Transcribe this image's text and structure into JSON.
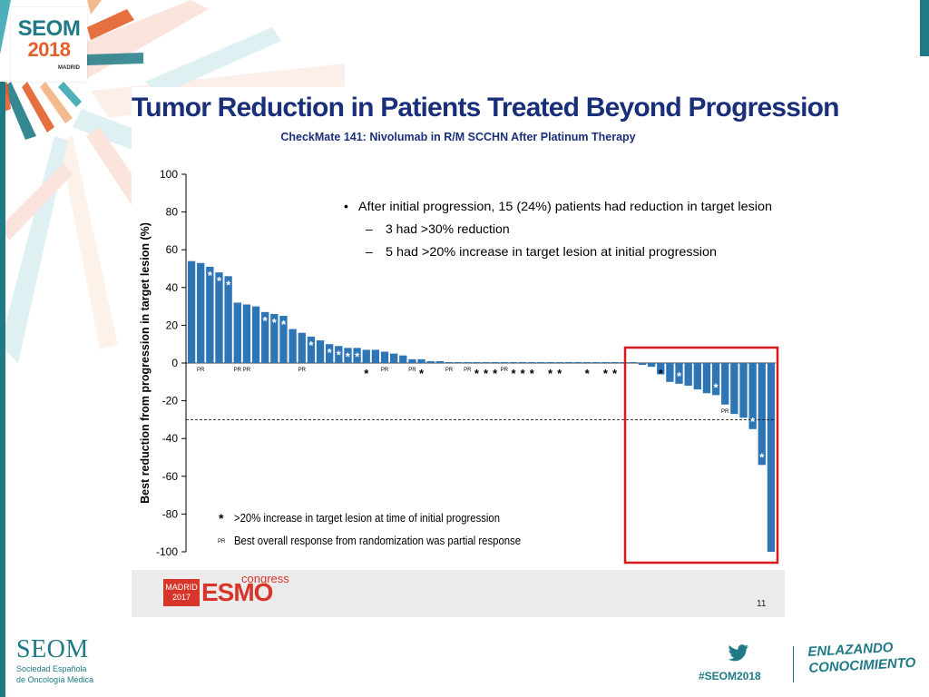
{
  "colors": {
    "accent": "#1f7a86",
    "orange": "#e35f2a",
    "title": "#1a2f7a",
    "bar": "#2e75b6",
    "highlight": "#d8181c"
  },
  "header": {
    "logo_main": "SEOM",
    "logo_year": "2018",
    "logo_city": "MADRID"
  },
  "slide": {
    "title": "Tumor Reduction in Patients Treated Beyond Progression",
    "subtitle": "CheckMate 141: Nivolumab in R/M SCCHN After Platinum Therapy",
    "page_number": "11",
    "esmo_city_line1": "MADRID",
    "esmo_city_line2": "2017",
    "esmo_name": "ESMO",
    "esmo_congress": "congress"
  },
  "footer": {
    "seom_name": "SEOM",
    "seom_sub_line1": "Sociedad Española",
    "seom_sub_line2": "de Oncología Médica",
    "hashtag": "#SEOM2018",
    "tagline_line1": "ENLAZANDO",
    "tagline_line2": "CONOCIMIENTO"
  },
  "chart_data": {
    "type": "bar",
    "title": "Tumor Reduction in Patients Treated Beyond Progression",
    "subtitle": "CheckMate 141: Nivolumab in R/M SCCHN After Platinum Therapy",
    "xlabel": "",
    "ylabel": "Best reduction from progression in target lesion (%)",
    "ylim": [
      -100,
      100
    ],
    "yticks": [
      100,
      80,
      60,
      40,
      20,
      0,
      -20,
      -40,
      -60,
      -80,
      -100
    ],
    "reference_line": -30,
    "values": [
      54,
      53,
      51,
      48,
      46,
      32,
      31,
      30,
      27,
      26,
      25,
      18,
      16,
      14,
      12,
      10,
      9,
      8,
      8,
      7,
      7,
      6,
      5,
      4,
      2,
      2,
      1,
      1,
      0.5,
      0.5,
      0.5,
      0.5,
      0.5,
      0.5,
      0.5,
      0.5,
      0.5,
      0.5,
      0.5,
      0.5,
      0.5,
      0.5,
      0.5,
      0.5,
      0.5,
      0.5,
      0.5,
      0.5,
      0.5,
      -1,
      -2,
      -6,
      -10,
      -11,
      -12,
      -14,
      -16,
      -17,
      -22,
      -27,
      -29,
      -35,
      -54,
      -100
    ],
    "asterisk_indices": [
      2,
      3,
      4,
      8,
      9,
      10,
      13,
      15,
      16,
      17,
      18,
      19,
      25,
      31,
      32,
      33,
      35,
      36,
      37,
      39,
      40,
      43,
      45,
      46,
      51,
      53,
      57,
      61,
      62
    ],
    "pr_indices": [
      1,
      5,
      6,
      12,
      21,
      24,
      28,
      30,
      34,
      58
    ],
    "bullet": "After initial progression, 15 (24%) patients had reduction in target lesion",
    "sub_bullets": [
      "3 had >30% reduction",
      "5 had >20% increase in target lesion at initial progression"
    ],
    "legend": [
      {
        "symbol": "*",
        "label": ">20% increase in target lesion at time of initial progression"
      },
      {
        "symbol": "PR",
        "label": "Best overall response from randomization was partial response"
      }
    ],
    "highlight_box": "negative bars region",
    "grid": false
  }
}
